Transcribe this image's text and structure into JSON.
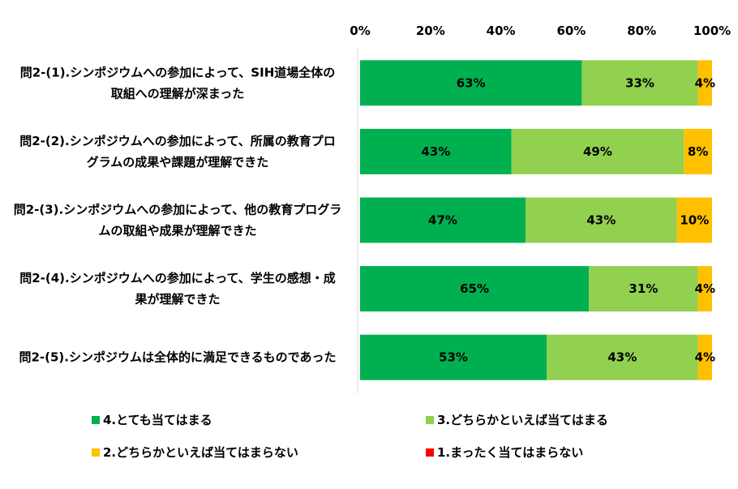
{
  "chart_data": {
    "type": "bar",
    "orientation": "horizontal",
    "stacked": "percent",
    "x_ticks": [
      "0%",
      "20%",
      "40%",
      "60%",
      "80%",
      "100%"
    ],
    "xlim": [
      0,
      100
    ],
    "categories": [
      [
        "問2-(1).シンポジウムへの参加によって、SIH道場全体の",
        "取組への理解が深まった"
      ],
      [
        "問2-(2).シンポジウムへの参加によって、所属の教育プロ",
        "グラムの成果や課題が理解できた"
      ],
      [
        "問2-(3).シンポジウムへの参加によって、他の教育プログラ",
        "ムの取組や成果が理解できた"
      ],
      [
        "問2-(4).シンポジウムへの参加によって、学生の感想・成",
        "果が理解できた"
      ],
      [
        "問2-(5).シンポジウムは全体的に満足できるものであった"
      ]
    ],
    "series": [
      {
        "name": "4.とても当てはまる",
        "color": "#00b050",
        "values": [
          63,
          43,
          47,
          65,
          53
        ],
        "labels": [
          "63%",
          "43%",
          "47%",
          "65%",
          "53%"
        ]
      },
      {
        "name": "3.どちらかといえば当てはまる",
        "color": "#92d050",
        "values": [
          33,
          49,
          43,
          31,
          43
        ],
        "labels": [
          "33%",
          "49%",
          "43%",
          "31%",
          "43%"
        ]
      },
      {
        "name": "2.どちらかといえば当てはまらない",
        "color": "#ffc000",
        "values": [
          4,
          8,
          10,
          4,
          4
        ],
        "labels": [
          "4%",
          "8%",
          "10%",
          "4%",
          "4%"
        ]
      },
      {
        "name": "1.まったく当てはまらない",
        "color": "#ff0000",
        "values": [
          0,
          0,
          0,
          0,
          0
        ],
        "labels": [
          "",
          "",
          "",
          "",
          ""
        ]
      }
    ],
    "grid": false,
    "legend_position": "bottom"
  }
}
